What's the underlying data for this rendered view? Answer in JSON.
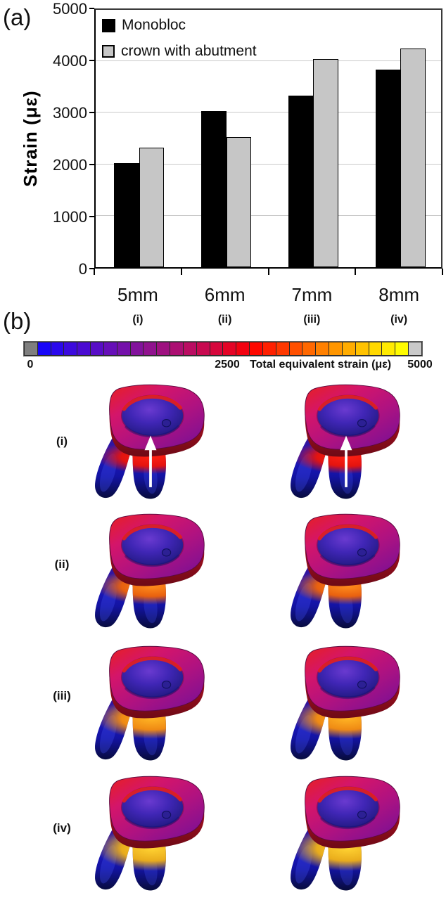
{
  "figure": {
    "panel_a_label": "(a)",
    "panel_b_label": "(b)"
  },
  "chart_data": {
    "type": "bar",
    "title": "",
    "categories": [
      "5mm",
      "6mm",
      "7mm",
      "8mm"
    ],
    "category_sublabels": [
      "(i)",
      "(ii)",
      "(iii)",
      "(iv)"
    ],
    "series": [
      {
        "name": "Monobloc",
        "color": "#000000",
        "values": [
          2000,
          3000,
          3300,
          3800
        ]
      },
      {
        "name": "crown with abutment",
        "color": "#c6c6c6",
        "values": [
          2300,
          2500,
          4000,
          4200
        ]
      }
    ],
    "xlabel": "",
    "ylabel": "Strain (με)",
    "ylim": [
      0,
      5000
    ],
    "yticks": [
      0,
      1000,
      2000,
      3000,
      4000,
      5000
    ],
    "grid": true,
    "gridline_color": "#c9c9c9",
    "legend_position": "top-left-inside"
  },
  "colorbar": {
    "min_label": "0",
    "mid_label": "2500",
    "title": "Total equivalent strain (με)",
    "max_label": "5000",
    "start_cap_color": "#7f7f7f",
    "end_cap_color": "#c9c9c9",
    "cell_colors": [
      "#1806f8",
      "#2a08ec",
      "#3c0ade",
      "#4a0bd2",
      "#580dc6",
      "#660fb8",
      "#7411aa",
      "#82129c",
      "#90128e",
      "#9e1180",
      "#ac0f72",
      "#ba0d62",
      "#c80a50",
      "#d6073c",
      "#e40426",
      "#f20210",
      "#fe0800",
      "#ff2000",
      "#ff3800",
      "#ff5000",
      "#ff6800",
      "#ff8000",
      "#ff9600",
      "#ffac00",
      "#ffc200",
      "#ffd800",
      "#ffea00",
      "#fffc00"
    ]
  },
  "fea_rows": [
    {
      "label": "(i)",
      "arrow": true,
      "band_color": "#e31410",
      "band_core": "#ff2012",
      "band_ry": 26
    },
    {
      "label": "(ii)",
      "arrow": false,
      "band_color": "#e8600f",
      "band_core": "#ff8c1c",
      "band_ry": 28
    },
    {
      "label": "(iii)",
      "arrow": false,
      "band_color": "#ef8a14",
      "band_core": "#ffb424",
      "band_ry": 31
    },
    {
      "label": "(iv)",
      "arrow": false,
      "band_color": "#e9ac1c",
      "band_core": "#ffd232",
      "band_ry": 34
    }
  ],
  "tooth_palette": {
    "root_top": "#70104e",
    "root_upper": "#3a1490",
    "root_mid": "#1d18c2",
    "root_low": "#1313a2",
    "root_dark": "#070b3a",
    "root_sheen": "#4150f0",
    "collar_red": "#e8201e",
    "collar_magenta": "#d4156a",
    "collar_violet": "#b01280",
    "collar_purple": "#7c1094",
    "collar_side_top": "#d01226",
    "collar_side_bottom": "#6e0a16",
    "crater_center": "#6a3ad0",
    "crater_mid": "#4026b6",
    "crater_deep": "#281c8c",
    "crater_edge": "#1a1260",
    "rim_red": "#ef2014",
    "dimple": "#2c2094",
    "arrow_color": "#ffffff"
  }
}
